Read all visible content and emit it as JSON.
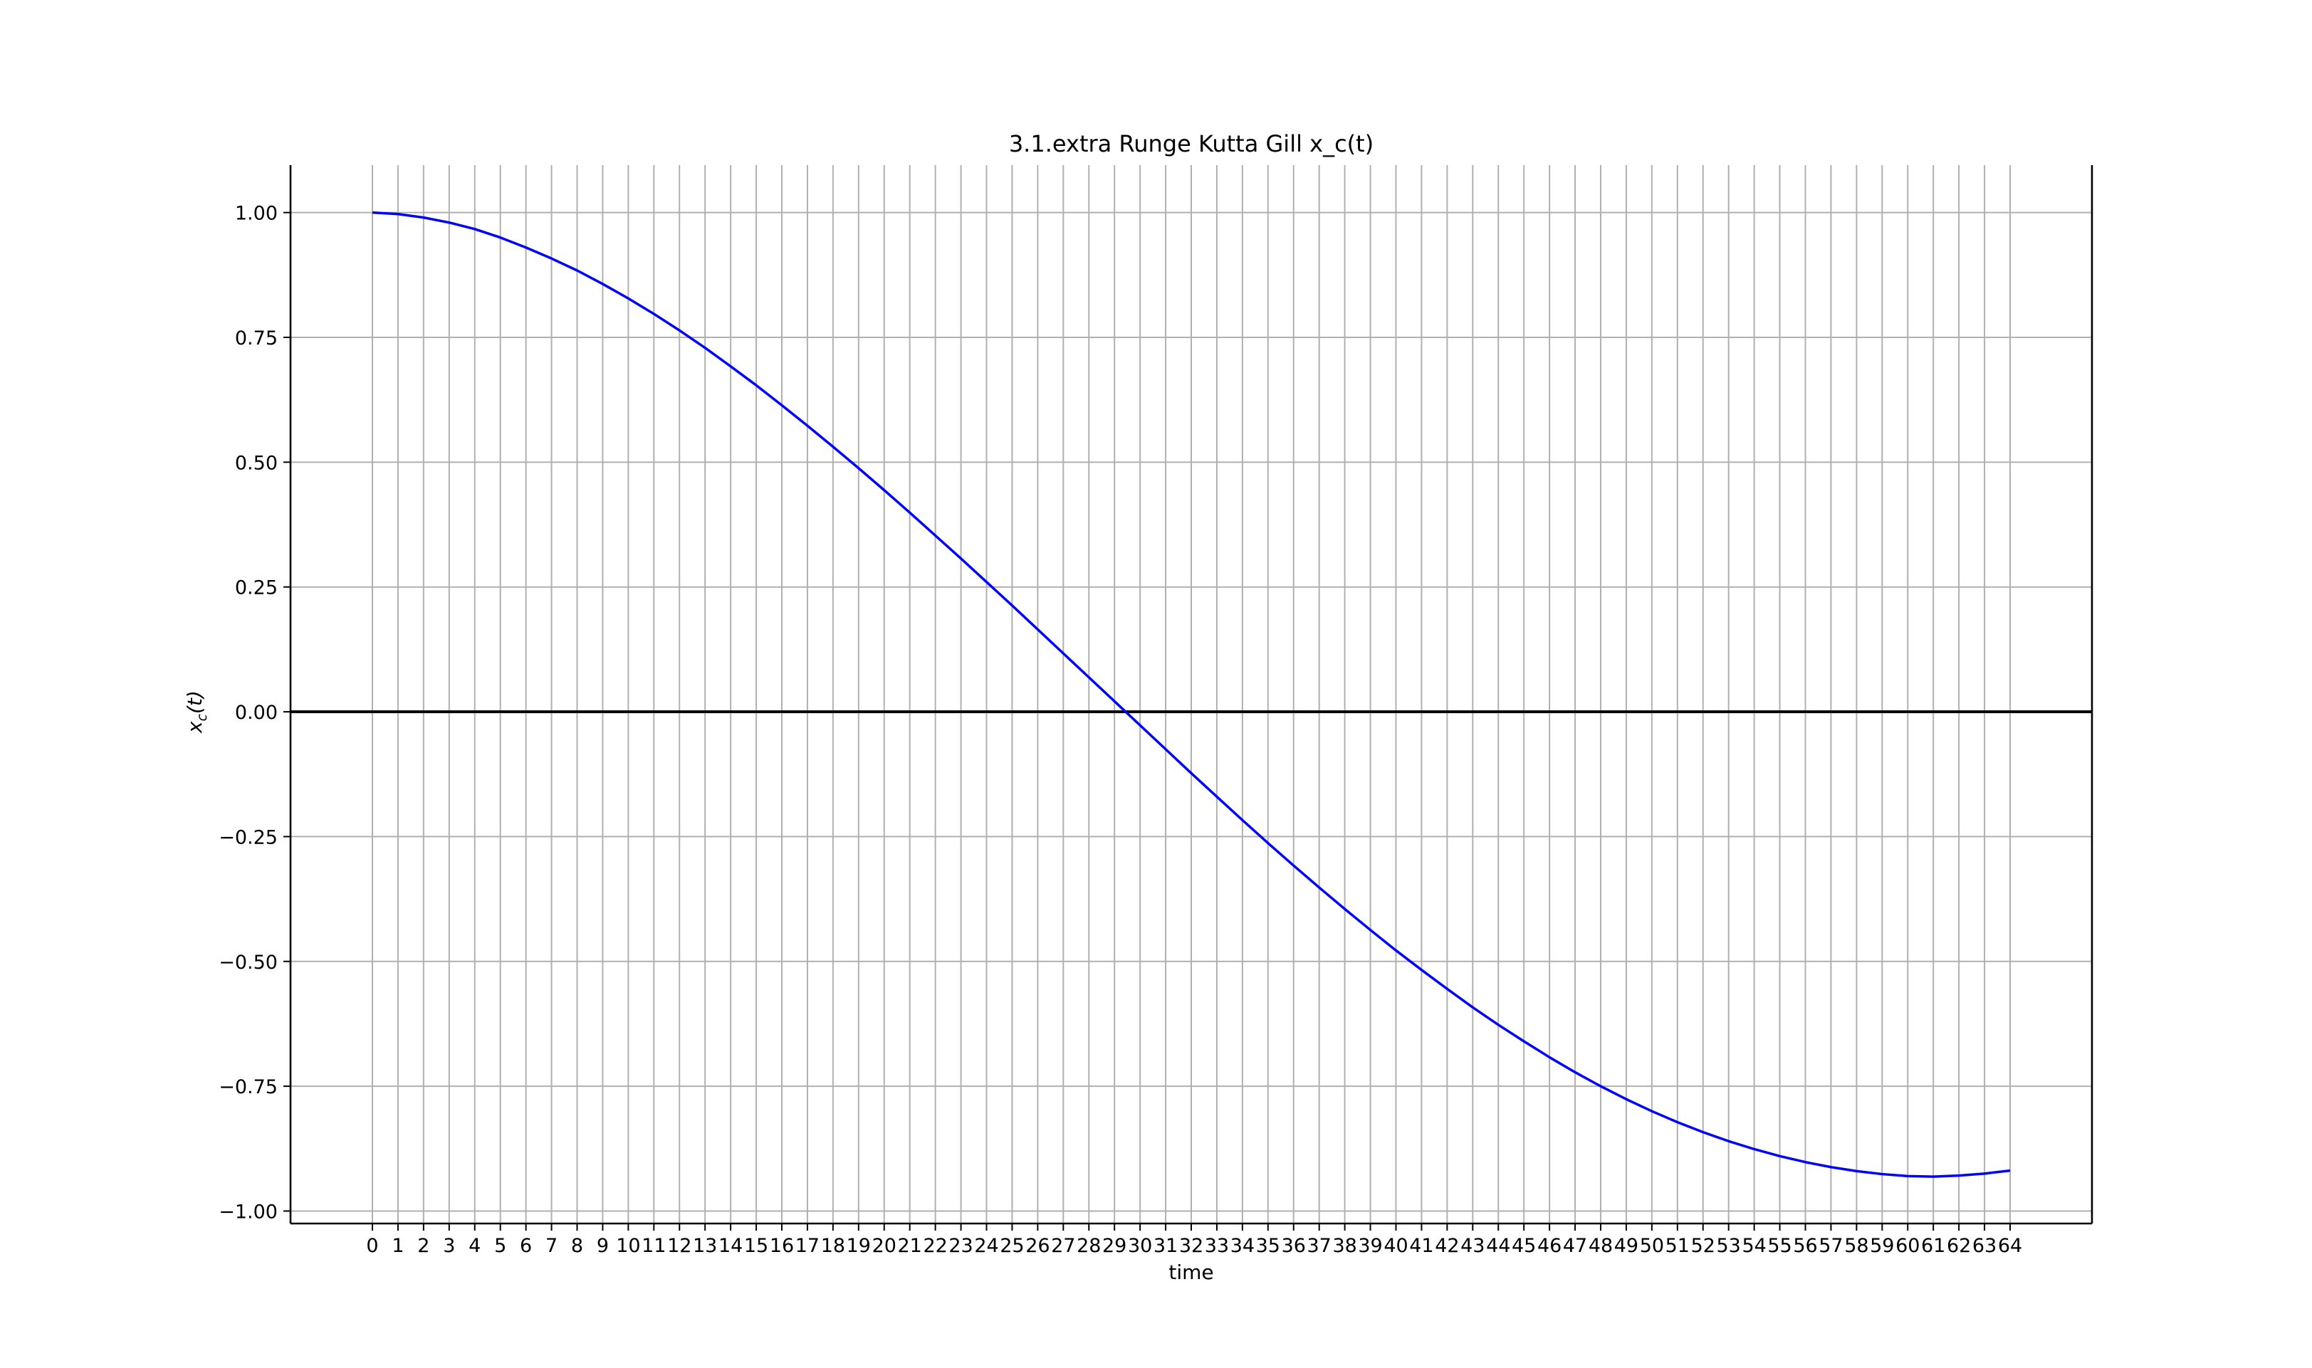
{
  "chart_data": {
    "type": "line",
    "title": "3.1.extra Runge Kutta Gill x_c(t)",
    "xlabel": "time",
    "ylabel_base": "x",
    "ylabel_sub": "c",
    "ylabel_arg": "(t)",
    "xlim": [
      -3.2,
      67.2
    ],
    "ylim": [
      -1.025,
      1.095
    ],
    "xticks": [
      0,
      1,
      2,
      3,
      4,
      5,
      6,
      7,
      8,
      9,
      10,
      11,
      12,
      13,
      14,
      15,
      16,
      17,
      18,
      19,
      20,
      21,
      22,
      23,
      24,
      25,
      26,
      27,
      28,
      29,
      30,
      31,
      32,
      33,
      34,
      35,
      36,
      37,
      38,
      39,
      40,
      41,
      42,
      43,
      44,
      45,
      46,
      47,
      48,
      49,
      50,
      51,
      52,
      53,
      54,
      55,
      56,
      57,
      58,
      59,
      60,
      61,
      62,
      63,
      64
    ],
    "yticks": [
      1.0,
      0.75,
      0.5,
      0.25,
      0.0,
      -0.25,
      -0.5,
      -0.75,
      -1.0
    ],
    "ytick_labels": [
      "1.00",
      "0.75",
      "0.50",
      "0.25",
      "0.00",
      "−0.25",
      "−0.50",
      "−0.75",
      "−1.00"
    ],
    "grid": true,
    "zero_line": true,
    "series": [
      {
        "color": "#0000ff",
        "x": [
          0,
          1,
          2,
          3,
          4,
          5,
          6,
          7,
          8,
          9,
          10,
          11,
          12,
          13,
          14,
          15,
          16,
          17,
          18,
          19,
          20,
          21,
          22,
          23,
          24,
          25,
          26,
          27,
          28,
          29,
          30,
          31,
          32,
          33,
          34,
          35,
          36,
          37,
          38,
          39,
          40,
          41,
          42,
          43,
          44,
          45,
          46,
          47,
          48,
          49,
          50,
          51,
          52,
          53,
          54,
          55,
          56,
          57,
          58,
          59,
          60,
          61,
          62,
          63,
          64
        ],
        "y": [
          1.0,
          0.997,
          0.99,
          0.98,
          0.967,
          0.95,
          0.93,
          0.908,
          0.884,
          0.857,
          0.828,
          0.797,
          0.764,
          0.729,
          0.692,
          0.654,
          0.614,
          0.573,
          0.531,
          0.488,
          0.444,
          0.399,
          0.353,
          0.307,
          0.26,
          0.213,
          0.165,
          0.117,
          0.069,
          0.021,
          -0.027,
          -0.075,
          -0.123,
          -0.17,
          -0.217,
          -0.263,
          -0.308,
          -0.352,
          -0.395,
          -0.437,
          -0.478,
          -0.517,
          -0.555,
          -0.592,
          -0.627,
          -0.66,
          -0.692,
          -0.722,
          -0.75,
          -0.776,
          -0.8,
          -0.822,
          -0.842,
          -0.86,
          -0.876,
          -0.89,
          -0.902,
          -0.912,
          -0.92,
          -0.926,
          -0.93,
          -0.931,
          -0.929,
          -0.925,
          -0.919
        ]
      }
    ]
  }
}
